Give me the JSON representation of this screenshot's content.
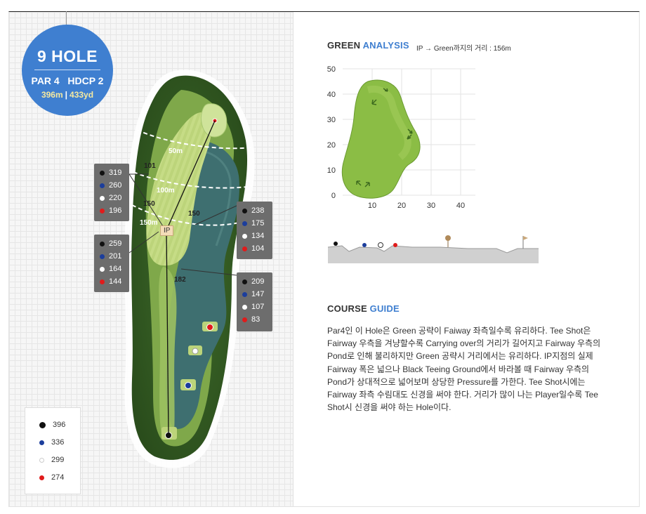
{
  "hole": {
    "title": "9 HOLE",
    "par_hdcp": "PAR 4   HDCP 2",
    "dist_m": "396m",
    "dist_yd": "433yd"
  },
  "map_labels": {
    "ip": "IP",
    "d50m": "50m",
    "d100m": "100m",
    "d150m": "150m",
    "mark101": "101",
    "mark150a": "150",
    "mark150b": "150",
    "mark182": "182"
  },
  "distance_boxes": [
    {
      "values": [
        "319",
        "260",
        "220",
        "196"
      ]
    },
    {
      "values": [
        "259",
        "201",
        "164",
        "144"
      ]
    },
    {
      "values": [
        "238",
        "175",
        "134",
        "104"
      ]
    },
    {
      "values": [
        "209",
        "147",
        "107",
        "83"
      ]
    }
  ],
  "legend": [
    "396",
    "336",
    "299",
    "274"
  ],
  "tee_colors": {
    "black": "#111111",
    "blue": "#1c3e9c",
    "white": "#ffffff",
    "red": "#e01b1b"
  },
  "green_analysis": {
    "title_main": "GREEN",
    "title_accent": "ANALYSIS",
    "note": "IP → Green까지의 거리 : 156m"
  },
  "chart_data": {
    "type": "heatmap",
    "y_ticks": [
      "50",
      "40",
      "30",
      "20",
      "10",
      "0"
    ],
    "x_ticks": [
      "10",
      "20",
      "30",
      "40"
    ],
    "xlim": [
      0,
      45
    ],
    "ylim": [
      0,
      50
    ],
    "grid": true
  },
  "course_guide": {
    "title_main": "COURSE",
    "title_accent": "GUIDE",
    "lines": [
      "Par4인 이 Hole은 Green 공략이 Faiway 좌측일수록 유리하다. Tee Shot은",
      "Fairway 우측을 겨냥할수록 Carrying over의 거리가 길어지고 Fairway 우측의",
      "Pond로 인해 불리하지만 Green 공략시 거리에서는 유리하다. IP지점의 실제",
      "Fairway 폭은 넓으나 Black Teeing Ground에서 바라볼 때 Fairway 우측의",
      "Pond가 상대적으로 넓어보며 상당한 Pressure를 가한다. Tee Shot시에는",
      "Fairway 좌측 수림대도 신경을 써야 한다. 거리가 많이 나는 Player일수록 Tee",
      "Shot시 신경을 써야 하는 Hole이다."
    ]
  }
}
